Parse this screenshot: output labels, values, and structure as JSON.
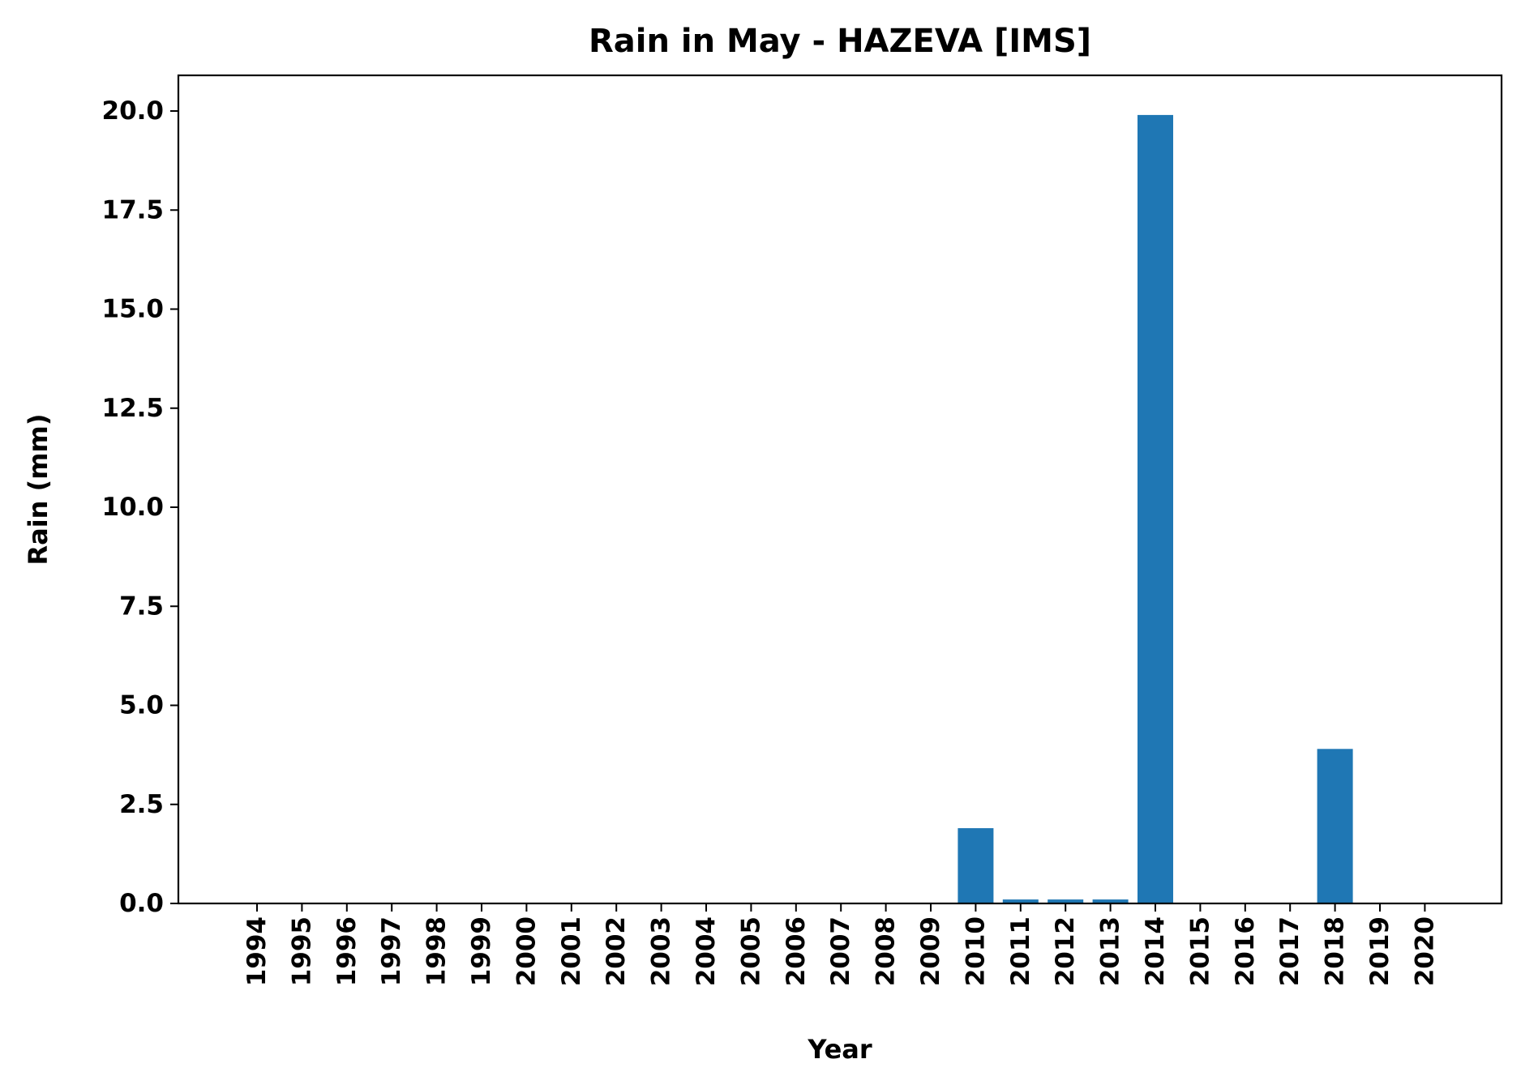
{
  "chart_data": {
    "type": "bar",
    "title": "Rain in May - HAZEVA [IMS]",
    "xlabel": "Year",
    "ylabel": "Rain (mm)",
    "ylim": [
      0,
      20.9
    ],
    "yticks": [
      "0.0",
      "2.5",
      "5.0",
      "7.5",
      "10.0",
      "12.5",
      "15.0",
      "17.5",
      "20.0"
    ],
    "categories": [
      "1994",
      "1995",
      "1996",
      "1997",
      "1998",
      "1999",
      "2000",
      "2001",
      "2002",
      "2003",
      "2004",
      "2005",
      "2006",
      "2007",
      "2008",
      "2009",
      "2010",
      "2011",
      "2012",
      "2013",
      "2014",
      "2015",
      "2016",
      "2017",
      "2018",
      "2019",
      "2020"
    ],
    "values": [
      0,
      0,
      0,
      0,
      0,
      0,
      0,
      0,
      0,
      0,
      0,
      0,
      0,
      0,
      0,
      0,
      1.9,
      0.1,
      0.1,
      0.1,
      19.9,
      0,
      0,
      0,
      3.9,
      0,
      0
    ],
    "bar_color": "#1f77b4",
    "grid": false,
    "legend": false
  }
}
